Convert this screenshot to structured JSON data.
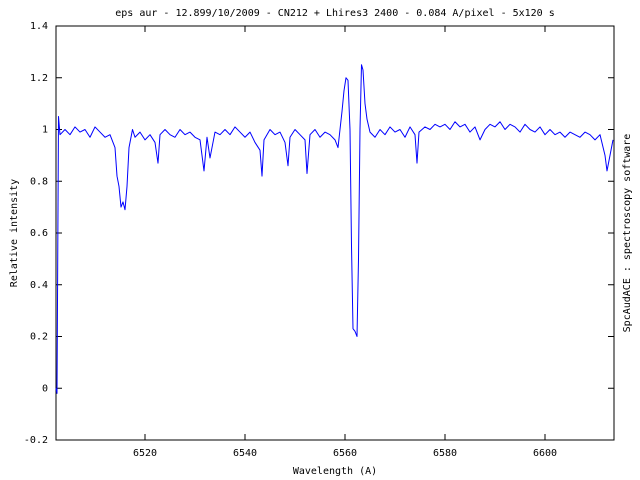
{
  "chart_data": {
    "type": "line",
    "title": "eps aur - 12.899/10/2009 - CN212 + Lhires3 2400 - 0.084 A/pixel - 5x120 s",
    "x_label": "Wavelength (A)",
    "y_label": "Relative intensity",
    "annotation": "SpcAudACE : spectroscopy software",
    "xlim": [
      6502.2,
      6613.8
    ],
    "ylim": [
      -0.2,
      1.4
    ],
    "xticks": [
      6520,
      6540,
      6560,
      6580,
      6600
    ],
    "yticks": [
      -0.2,
      0,
      0.2,
      0.4,
      0.6,
      0.8,
      1,
      1.2,
      1.4
    ],
    "grid": false,
    "series": [
      {
        "color": "#0000ff",
        "x": [
          6502.2,
          6502.4,
          6502.7,
          6503,
          6504,
          6505,
          6506,
          6507,
          6508,
          6509,
          6510,
          6511,
          6512,
          6513,
          6514,
          6514.4,
          6514.8,
          6515.2,
          6515.6,
          6516,
          6516.4,
          6516.8,
          6517.5,
          6518,
          6519,
          6520,
          6521,
          6522,
          6522.6,
          6523,
          6524,
          6525,
          6526,
          6527,
          6528,
          6529,
          6530,
          6531,
          6531.8,
          6532.4,
          6533,
          6534,
          6535,
          6536,
          6537,
          6538,
          6539,
          6540,
          6541,
          6542,
          6543,
          6543.4,
          6543.8,
          6545,
          6546,
          6547,
          6548,
          6548.6,
          6549,
          6550,
          6551,
          6552,
          6552.4,
          6553,
          6554,
          6555,
          6556,
          6557,
          6558,
          6558.6,
          6559,
          6559.4,
          6559.8,
          6560.2,
          6560.6,
          6561,
          6561.3,
          6561.6,
          6562,
          6562.4,
          6562.7,
          6563,
          6563.3,
          6563.6,
          6564,
          6564.4,
          6565,
          6566,
          6567,
          6568,
          6569,
          6570,
          6571,
          6572,
          6573,
          6574,
          6574.4,
          6574.8,
          6576,
          6577,
          6578,
          6579,
          6580,
          6581,
          6582,
          6583,
          6584,
          6585,
          6586,
          6587,
          6588,
          6589,
          6590,
          6591,
          6592,
          6593,
          6594,
          6595,
          6596,
          6597,
          6598,
          6599,
          6600,
          6601,
          6602,
          6603,
          6604,
          6605,
          6606,
          6607,
          6608,
          6609,
          6610,
          6611,
          6612,
          6612.4,
          6613,
          6613.6
        ],
        "values": [
          0.0,
          -0.02,
          1.05,
          0.98,
          1.0,
          0.98,
          1.01,
          0.99,
          1.0,
          0.97,
          1.01,
          0.99,
          0.97,
          0.98,
          0.93,
          0.82,
          0.78,
          0.7,
          0.72,
          0.69,
          0.78,
          0.93,
          1.0,
          0.97,
          0.99,
          0.96,
          0.98,
          0.95,
          0.87,
          0.98,
          1.0,
          0.98,
          0.97,
          1.0,
          0.98,
          0.99,
          0.97,
          0.96,
          0.84,
          0.97,
          0.89,
          0.99,
          0.98,
          1.0,
          0.98,
          1.01,
          0.99,
          0.97,
          0.99,
          0.95,
          0.92,
          0.82,
          0.96,
          1.0,
          0.98,
          0.99,
          0.95,
          0.86,
          0.97,
          1.0,
          0.98,
          0.96,
          0.83,
          0.98,
          1.0,
          0.97,
          0.99,
          0.98,
          0.96,
          0.93,
          1.0,
          1.07,
          1.15,
          1.2,
          1.19,
          1.0,
          0.55,
          0.23,
          0.22,
          0.2,
          0.5,
          1.0,
          1.25,
          1.23,
          1.1,
          1.04,
          0.99,
          0.97,
          1.0,
          0.98,
          1.01,
          0.99,
          1.0,
          0.97,
          1.01,
          0.98,
          0.87,
          0.99,
          1.01,
          1.0,
          1.02,
          1.01,
          1.02,
          1.0,
          1.03,
          1.01,
          1.02,
          0.99,
          1.01,
          0.96,
          1.0,
          1.02,
          1.01,
          1.03,
          1.0,
          1.02,
          1.01,
          0.99,
          1.02,
          1.0,
          0.99,
          1.01,
          0.98,
          1.0,
          0.98,
          0.99,
          0.97,
          0.99,
          0.98,
          0.97,
          0.99,
          0.98,
          0.96,
          0.98,
          0.9,
          0.84,
          0.9,
          0.96
        ]
      }
    ]
  }
}
